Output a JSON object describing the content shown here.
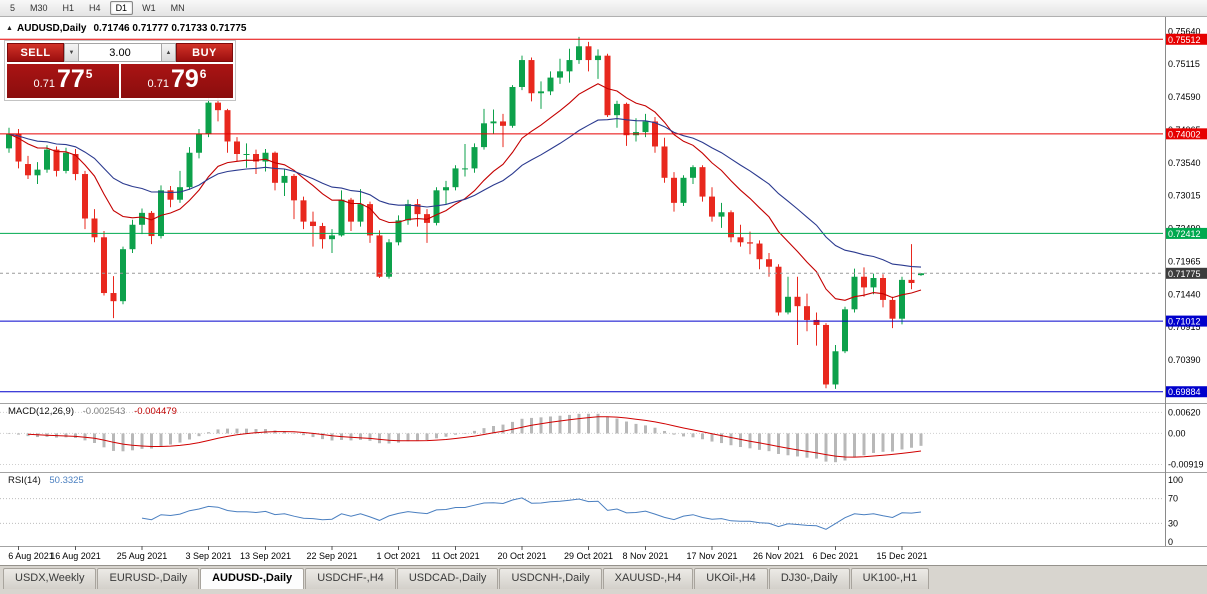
{
  "toolbar": {
    "periods": [
      "5",
      "M30",
      "H1",
      "H4",
      "D1",
      "W1",
      "MN"
    ],
    "active": "D1"
  },
  "chart": {
    "collapse_icon": "▲",
    "title_symbol": "AUDUSD,Daily",
    "title_ohlc": "0.71746 0.71777 0.71733 0.71775"
  },
  "trade_panel": {
    "sell_label": "SELL",
    "buy_label": "BUY",
    "volume": "3.00",
    "spinner_up": "▲",
    "spinner_down": "▼",
    "sell_price": {
      "prefix": "0.71",
      "big": "77",
      "sup": "5"
    },
    "buy_price": {
      "prefix": "0.71",
      "big": "79",
      "sup": "6"
    }
  },
  "tabs": [
    "USDX,Weekly",
    "EURUSD-,Daily",
    "AUDUSD-,Daily",
    "USDCHF-,H4",
    "USDCAD-,Daily",
    "USDCNH-,Daily",
    "XAUUSD-,H4",
    "UKOil-,H4",
    "DJ30-,Daily",
    "UK100-,H1"
  ],
  "active_tab": "AUDUSD-,Daily",
  "chart_data": {
    "type": "candlestick",
    "symbol": "AUDUSD",
    "period": "Daily",
    "colors": {
      "up": "#0da14b",
      "down": "#e8281e",
      "ma_fast": "#c40000",
      "ma_slow": "#2b3a8f",
      "macd_hist": "#b8b8b8",
      "macd_signal": "#d00000",
      "rsi": "#4a7fc0"
    },
    "y_range": [
      0.6972,
      0.7566
    ],
    "y_axis_ticks": [
      "0.75640",
      "0.75115",
      "0.74590",
      "0.74065",
      "0.73540",
      "0.73015",
      "0.72490",
      "0.71965",
      "0.71440",
      "0.70915",
      "0.70390",
      "0.69865"
    ],
    "x_tick_labels": [
      "6 Aug 2021",
      "16 Aug 2021",
      "25 Aug 2021",
      "3 Sep 2021",
      "13 Sep 2021",
      "22 Sep 2021",
      "1 Oct 2021",
      "11 Oct 2021",
      "20 Oct 2021",
      "29 Oct 2021",
      "8 Nov 2021",
      "17 Nov 2021",
      "26 Nov 2021",
      "6 Dec 2021",
      "15 Dec 2021"
    ],
    "x_tick_indices": [
      1,
      7,
      14,
      21,
      27,
      34,
      41,
      47,
      54,
      61,
      67,
      74,
      81,
      87,
      94
    ],
    "h_lines": [
      {
        "price": 0.75512,
        "color": "#e60000",
        "label": "0.75512"
      },
      {
        "price": 0.74002,
        "color": "#e60000",
        "label": "0.74002"
      },
      {
        "price": 0.72412,
        "color": "#00a94f",
        "label": "0.72412"
      },
      {
        "price": 0.71012,
        "color": "#0000cc",
        "label": "0.71012"
      },
      {
        "price": 0.69884,
        "color": "#0000cc",
        "label": "0.69884"
      }
    ],
    "current_price": {
      "value": 0.71775,
      "label": "0.71775",
      "color": "#3c3c3c"
    },
    "moving_averages": [
      {
        "name": "ma-fast",
        "period": 12,
        "method": "ema",
        "color": "#c40000"
      },
      {
        "name": "ma-slow",
        "period": 26,
        "method": "ema",
        "color": "#2b3a8f"
      }
    ],
    "macd": {
      "label": "MACD(12,26,9)",
      "main_value": "-0.002543",
      "signal_value": "-0.004479",
      "fast": 12,
      "slow": 26,
      "signal": 9,
      "range": [
        -0.0105,
        0.0078
      ],
      "y_ticks": [
        {
          "value": 0.0062,
          "label": "0.00620"
        },
        {
          "value": 0,
          "label": "0.00"
        },
        {
          "value": -0.00919,
          "label": "-0.00919"
        }
      ]
    },
    "rsi": {
      "label": "RSI(14)",
      "value": "50.3325",
      "period": 14,
      "levels": [
        70,
        30
      ],
      "range": [
        -5,
        105
      ],
      "y_ticks": [
        {
          "value": 100,
          "label": "100"
        },
        {
          "value": 70,
          "label": "70"
        },
        {
          "value": 30,
          "label": "30"
        },
        {
          "value": 0,
          "label": "0"
        }
      ]
    },
    "ohlc": [
      [
        0.7377,
        0.741,
        0.737,
        0.74
      ],
      [
        0.74,
        0.7408,
        0.7345,
        0.7356
      ],
      [
        0.7352,
        0.7365,
        0.7328,
        0.7334
      ],
      [
        0.7334,
        0.7355,
        0.732,
        0.7343
      ],
      [
        0.7343,
        0.7382,
        0.7338,
        0.7375
      ],
      [
        0.7375,
        0.738,
        0.7332,
        0.7341
      ],
      [
        0.7341,
        0.7378,
        0.7337,
        0.737
      ],
      [
        0.7368,
        0.7376,
        0.7326,
        0.7336
      ],
      [
        0.7336,
        0.7341,
        0.7248,
        0.7265
      ],
      [
        0.7265,
        0.728,
        0.7227,
        0.7235
      ],
      [
        0.7235,
        0.7245,
        0.7142,
        0.7146
      ],
      [
        0.7146,
        0.7173,
        0.7106,
        0.7133
      ],
      [
        0.7133,
        0.722,
        0.7128,
        0.7216
      ],
      [
        0.7216,
        0.7263,
        0.721,
        0.7255
      ],
      [
        0.7255,
        0.7281,
        0.724,
        0.7274
      ],
      [
        0.7274,
        0.7277,
        0.7224,
        0.7237
      ],
      [
        0.7237,
        0.7318,
        0.7233,
        0.731
      ],
      [
        0.731,
        0.7317,
        0.7283,
        0.7295
      ],
      [
        0.7295,
        0.7341,
        0.729,
        0.7315
      ],
      [
        0.7315,
        0.7379,
        0.7311,
        0.737
      ],
      [
        0.737,
        0.7408,
        0.7361,
        0.74
      ],
      [
        0.74,
        0.7478,
        0.7395,
        0.745
      ],
      [
        0.745,
        0.7462,
        0.742,
        0.7438
      ],
      [
        0.7438,
        0.744,
        0.737,
        0.7388
      ],
      [
        0.7388,
        0.7395,
        0.7356,
        0.7368
      ],
      [
        0.7368,
        0.7385,
        0.7346,
        0.7368
      ],
      [
        0.7368,
        0.7375,
        0.7336,
        0.7356
      ],
      [
        0.7356,
        0.7376,
        0.734,
        0.737
      ],
      [
        0.737,
        0.7372,
        0.731,
        0.7322
      ],
      [
        0.7322,
        0.7344,
        0.7301,
        0.7333
      ],
      [
        0.7333,
        0.7336,
        0.7264,
        0.7294
      ],
      [
        0.7294,
        0.73,
        0.7248,
        0.726
      ],
      [
        0.726,
        0.7276,
        0.722,
        0.7253
      ],
      [
        0.7253,
        0.7258,
        0.7217,
        0.7232
      ],
      [
        0.7232,
        0.7248,
        0.721,
        0.7238
      ],
      [
        0.7238,
        0.731,
        0.7236,
        0.7295
      ],
      [
        0.7295,
        0.7298,
        0.7245,
        0.726
      ],
      [
        0.726,
        0.7312,
        0.7252,
        0.7288
      ],
      [
        0.7288,
        0.7292,
        0.7226,
        0.7238
      ],
      [
        0.7238,
        0.7246,
        0.717,
        0.7172
      ],
      [
        0.7172,
        0.7232,
        0.7169,
        0.7227
      ],
      [
        0.7227,
        0.727,
        0.7222,
        0.7262
      ],
      [
        0.7262,
        0.7295,
        0.7255,
        0.7288
      ],
      [
        0.7288,
        0.7296,
        0.7252,
        0.7272
      ],
      [
        0.7272,
        0.728,
        0.7226,
        0.7258
      ],
      [
        0.7258,
        0.7315,
        0.7254,
        0.731
      ],
      [
        0.731,
        0.7325,
        0.7288,
        0.7315
      ],
      [
        0.7315,
        0.735,
        0.731,
        0.7345
      ],
      [
        0.7345,
        0.7384,
        0.7332,
        0.7345
      ],
      [
        0.7345,
        0.7385,
        0.7338,
        0.7379
      ],
      [
        0.7379,
        0.744,
        0.7375,
        0.7417
      ],
      [
        0.7417,
        0.7439,
        0.74,
        0.742
      ],
      [
        0.742,
        0.7432,
        0.7379,
        0.7413
      ],
      [
        0.7413,
        0.7478,
        0.741,
        0.7475
      ],
      [
        0.7475,
        0.7525,
        0.747,
        0.7518
      ],
      [
        0.7518,
        0.7522,
        0.7452,
        0.7465
      ],
      [
        0.7465,
        0.7484,
        0.744,
        0.7468
      ],
      [
        0.7468,
        0.75,
        0.7462,
        0.749
      ],
      [
        0.749,
        0.752,
        0.748,
        0.75
      ],
      [
        0.75,
        0.7536,
        0.7482,
        0.7518
      ],
      [
        0.7518,
        0.7555,
        0.7512,
        0.754
      ],
      [
        0.754,
        0.7547,
        0.75,
        0.7518
      ],
      [
        0.7518,
        0.7535,
        0.7488,
        0.7525
      ],
      [
        0.7525,
        0.7528,
        0.7427,
        0.743
      ],
      [
        0.743,
        0.7453,
        0.741,
        0.7448
      ],
      [
        0.7448,
        0.745,
        0.7381,
        0.7398
      ],
      [
        0.7398,
        0.7425,
        0.7388,
        0.7403
      ],
      [
        0.7403,
        0.7432,
        0.7395,
        0.742
      ],
      [
        0.742,
        0.7427,
        0.737,
        0.738
      ],
      [
        0.738,
        0.7394,
        0.7322,
        0.733
      ],
      [
        0.733,
        0.7339,
        0.7276,
        0.729
      ],
      [
        0.729,
        0.7334,
        0.7285,
        0.733
      ],
      [
        0.733,
        0.735,
        0.732,
        0.7347
      ],
      [
        0.7347,
        0.735,
        0.7292,
        0.73
      ],
      [
        0.73,
        0.7315,
        0.726,
        0.7268
      ],
      [
        0.7268,
        0.729,
        0.725,
        0.7275
      ],
      [
        0.7275,
        0.7278,
        0.7227,
        0.7235
      ],
      [
        0.7235,
        0.7255,
        0.722,
        0.7227
      ],
      [
        0.7227,
        0.7244,
        0.7208,
        0.7225
      ],
      [
        0.7225,
        0.723,
        0.7184,
        0.72
      ],
      [
        0.72,
        0.721,
        0.7172,
        0.7188
      ],
      [
        0.7188,
        0.7192,
        0.711,
        0.7115
      ],
      [
        0.7115,
        0.7172,
        0.7112,
        0.714
      ],
      [
        0.714,
        0.7172,
        0.7063,
        0.7125
      ],
      [
        0.7125,
        0.7145,
        0.7085,
        0.7103
      ],
      [
        0.7103,
        0.7115,
        0.7062,
        0.7095
      ],
      [
        0.7095,
        0.7098,
        0.6994,
        0.7
      ],
      [
        0.7,
        0.7063,
        0.6993,
        0.7053
      ],
      [
        0.7053,
        0.7124,
        0.705,
        0.712
      ],
      [
        0.712,
        0.7185,
        0.7115,
        0.7172
      ],
      [
        0.7172,
        0.7187,
        0.714,
        0.7155
      ],
      [
        0.7155,
        0.7177,
        0.7144,
        0.717
      ],
      [
        0.717,
        0.7176,
        0.7123,
        0.7135
      ],
      [
        0.7135,
        0.714,
        0.709,
        0.7105
      ],
      [
        0.7105,
        0.7172,
        0.7096,
        0.7167
      ],
      [
        0.7167,
        0.7224,
        0.7152,
        0.7162
      ],
      [
        0.71746,
        0.71777,
        0.71733,
        0.71775
      ]
    ]
  }
}
